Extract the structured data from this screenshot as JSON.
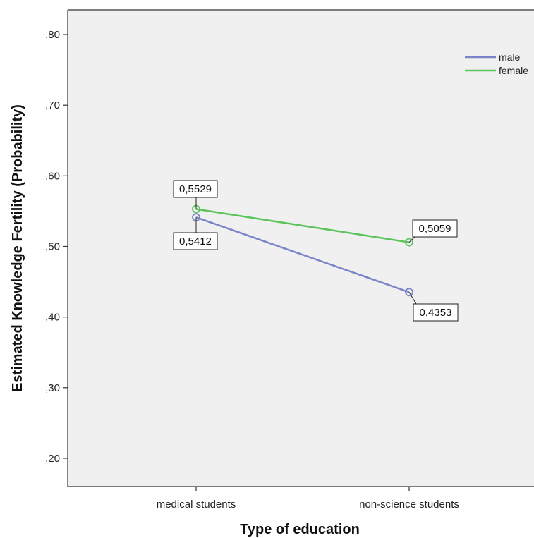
{
  "chart_data": {
    "type": "line",
    "title": "",
    "xlabel": "Type of education",
    "ylabel": "Estimated Knowledge Fertility (Probability)",
    "categories": [
      "medical students",
      "non-science students"
    ],
    "ylim": [
      0.16,
      0.835
    ],
    "yticks": [
      0.8,
      0.7,
      0.6,
      0.5,
      0.4,
      0.3,
      0.2
    ],
    "ytick_labels": [
      ",80",
      ",70",
      ",60",
      ",50",
      ",40",
      ",30",
      ",20"
    ],
    "grid": false,
    "legend_position": "top-right",
    "series": [
      {
        "name": "male",
        "color": "#7b84c8",
        "values": [
          0.5412,
          0.4353
        ],
        "data_labels": [
          "0,5412",
          "0,4353"
        ]
      },
      {
        "name": "female",
        "color": "#5cc45c",
        "values": [
          0.5529,
          0.5059
        ],
        "data_labels": [
          "0,5529",
          "0,5059"
        ]
      }
    ],
    "plot_background": "#f0f0f0"
  }
}
